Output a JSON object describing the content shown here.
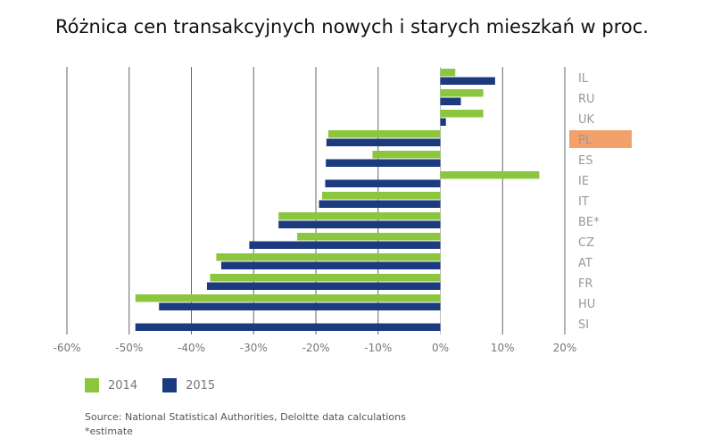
{
  "chart_data": {
    "type": "bar",
    "orientation": "horizontal",
    "title": "Różnica cen transakcyjnych nowych i starych mieszkań w proc.",
    "categories": [
      "IL",
      "RU",
      "UK",
      "PL",
      "ES",
      "IE",
      "IT",
      "BE*",
      "CZ",
      "AT",
      "FR",
      "HU",
      "SI"
    ],
    "highlight_category": "PL",
    "highlight_color": "#f4a06a",
    "series": [
      {
        "name": "2014",
        "color": "#8cc63f",
        "values": [
          2.4,
          6.9,
          6.9,
          -18.0,
          -10.9,
          15.9,
          -19.0,
          -26.0,
          -23.0,
          -36.0,
          -37.0,
          -49.0,
          null
        ]
      },
      {
        "name": "2015",
        "color": "#1c3a7e",
        "values": [
          8.8,
          3.3,
          0.9,
          -18.3,
          -18.4,
          -18.5,
          -19.5,
          -26.0,
          -30.7,
          -35.2,
          -37.5,
          -45.2,
          -49.0
        ]
      }
    ],
    "xlim": [
      -60,
      20
    ],
    "xticks": [
      "-60%",
      "-50%",
      "-40%",
      "-30%",
      "-20%",
      "-10%",
      "0%",
      "10%",
      "20%"
    ],
    "xtick_values": [
      -60,
      -50,
      -40,
      -30,
      -20,
      -10,
      0,
      10,
      20
    ],
    "grid": true,
    "legend_position": "bottom-left",
    "source": "Source: National Statistical Authorities, Deloitte data calculations",
    "footnote": "*estimate"
  }
}
